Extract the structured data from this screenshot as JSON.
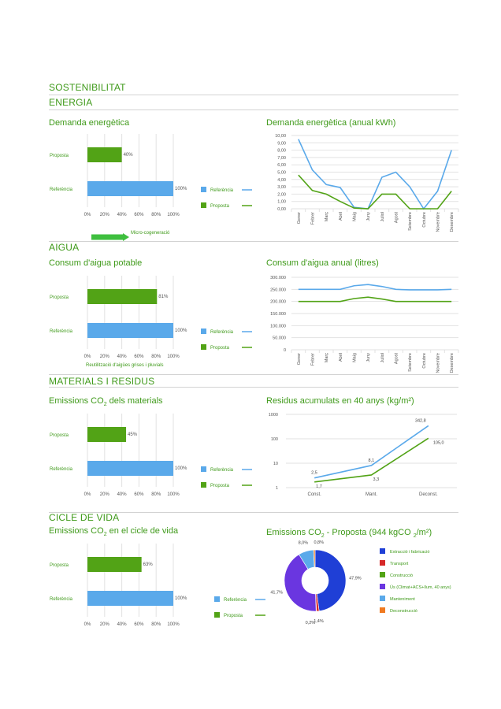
{
  "page": {
    "title": "SOSTENIBILITAT",
    "sections": {
      "energia": "ENERGIA",
      "aigua": "AIGUA",
      "materials": "MATERIALS I RESIDUS",
      "cicle": "CICLE DE VIDA"
    },
    "subtitles": {
      "demanda": "Demanda energètica",
      "demanda_anual": "Demanda energètica (anual kWh)",
      "consum": "Consum d'aigua potable",
      "consum_anual": "Consum d'aigua anual (litres)",
      "emissions_materials_pre": "Emissions CO",
      "emissions_materials_sub": "2",
      "emissions_materials_post": " dels materials",
      "residus": "Residus acumulats en 40 anys (kg/m²)",
      "emissions_cicle_pre": "Emissions CO",
      "emissions_cicle_sub": "2",
      "emissions_cicle_post": " en el cicle de vida",
      "proposta_pre": "Emissions CO",
      "proposta_sub": "2",
      "proposta_mid": " - Proposta (944 kgCO ",
      "proposta_sub2": "2",
      "proposta_post": "/m²)"
    },
    "notes": {
      "micro": "Micro-cogeneració",
      "reutilitzacio": "Reutilització d'aigües grises i pluvials"
    }
  },
  "colors": {
    "referencia": "#5aa9ea",
    "proposta": "#52a316",
    "text_green": "#3f9a1a",
    "grid": "#e2e2e2"
  },
  "chart_data": [
    {
      "id": "demanda-energetica",
      "type": "bar",
      "orientation": "horizontal",
      "categories": [
        "Proposta",
        "Referència"
      ],
      "values": [
        40,
        100
      ],
      "value_labels": [
        "40%",
        "100%"
      ],
      "xlim": [
        0,
        100
      ],
      "xticks": [
        "0%",
        "20%",
        "40%",
        "60%",
        "80%",
        "100%"
      ],
      "legend": [
        "Referència",
        "Proposta"
      ],
      "legend_position": "right"
    },
    {
      "id": "demanda-energetica-anual",
      "type": "line",
      "x": [
        "Gener",
        "Febrer",
        "Març",
        "Abril",
        "Maig",
        "Juny",
        "Juliol",
        "Agost",
        "Setembre",
        "Octubre",
        "Novembre",
        "Desembre"
      ],
      "series": [
        {
          "name": "Referència",
          "values": [
            9.5,
            5.3,
            3.3,
            2.9,
            0.2,
            0.0,
            4.3,
            5.0,
            3.0,
            0.0,
            2.4,
            8.0
          ]
        },
        {
          "name": "Proposta",
          "values": [
            4.6,
            2.5,
            2.0,
            1.0,
            0.1,
            0.0,
            2.0,
            2.0,
            0.0,
            0.0,
            0.0,
            2.4
          ]
        }
      ],
      "ylim": [
        0,
        10
      ],
      "yticks": [
        "0,00",
        "1,00",
        "2,00",
        "3,00",
        "4,00",
        "5,00",
        "6,00",
        "7,00",
        "8,00",
        "9,00",
        "10,00"
      ]
    },
    {
      "id": "consum-aigua",
      "type": "bar",
      "orientation": "horizontal",
      "categories": [
        "Proposta",
        "Referència"
      ],
      "values": [
        81,
        100
      ],
      "value_labels": [
        "81%",
        "100%"
      ],
      "xlim": [
        0,
        100
      ],
      "xticks": [
        "0%",
        "20%",
        "40%",
        "60%",
        "80%",
        "100%"
      ],
      "legend": [
        "Referència",
        "Proposta"
      ],
      "legend_position": "right"
    },
    {
      "id": "consum-aigua-anual",
      "type": "line",
      "x": [
        "Gener",
        "Febrer",
        "Març",
        "Abril",
        "Maig",
        "Juny",
        "Juliol",
        "Agost",
        "Setembre",
        "Octubre",
        "Novembre",
        "Desembre"
      ],
      "series": [
        {
          "name": "Referència",
          "values": [
            250000,
            250000,
            250000,
            250000,
            265000,
            270000,
            262000,
            250000,
            248000,
            248000,
            248000,
            250000
          ]
        },
        {
          "name": "Proposta",
          "values": [
            200000,
            200000,
            200000,
            200000,
            212000,
            218000,
            210000,
            200000,
            200000,
            200000,
            200000,
            200000
          ]
        }
      ],
      "ylim": [
        0,
        300000
      ],
      "yticks": [
        "0",
        "50.000",
        "100.000",
        "150.000",
        "200.000",
        "250.000",
        "300.000"
      ]
    },
    {
      "id": "emissions-materials",
      "type": "bar",
      "orientation": "horizontal",
      "categories": [
        "Proposta",
        "Referència"
      ],
      "values": [
        45,
        100
      ],
      "value_labels": [
        "45%",
        "100%"
      ],
      "xlim": [
        0,
        100
      ],
      "xticks": [
        "0%",
        "20%",
        "40%",
        "60%",
        "80%",
        "100%"
      ],
      "legend": [
        "Referència",
        "Proposta"
      ],
      "legend_position": "right"
    },
    {
      "id": "residus-acumulats",
      "type": "line",
      "yscale": "log",
      "x": [
        "Const.",
        "Mant.",
        "Deconst."
      ],
      "series": [
        {
          "name": "Referència",
          "values": [
            2.5,
            8.1,
            342.8
          ],
          "labels": [
            "2,5",
            "8,1",
            "342,8"
          ]
        },
        {
          "name": "Proposta",
          "values": [
            1.7,
            3.3,
            105.0
          ],
          "labels": [
            "1,7",
            "3,3",
            "105,0"
          ]
        }
      ],
      "ylim": [
        1,
        1000
      ],
      "yticks": [
        "1",
        "10",
        "100",
        "1000"
      ]
    },
    {
      "id": "emissions-cicle-vida",
      "type": "bar",
      "orientation": "horizontal",
      "categories": [
        "Proposta",
        "Referència"
      ],
      "values": [
        63,
        100
      ],
      "value_labels": [
        "63%",
        "100%"
      ],
      "xlim": [
        0,
        100
      ],
      "xticks": [
        "0%",
        "20%",
        "40%",
        "60%",
        "80%",
        "100%"
      ],
      "legend": [
        "Referència",
        "Proposta"
      ],
      "legend_position": "right"
    },
    {
      "id": "emissions-proposta",
      "type": "pie",
      "donut": true,
      "slices": [
        {
          "name": "Extracció i fabricació",
          "value": 47.9,
          "label": "47,9%",
          "color": "#1f3fd6"
        },
        {
          "name": "Transport",
          "value": 1.4,
          "label": "1,4%",
          "color": "#d62828"
        },
        {
          "name": "Construcció",
          "value": 0.2,
          "label": "0,2%",
          "color": "#52a316"
        },
        {
          "name": "Ús (Climat+ACS+llum, 40 anys)",
          "value": 41.7,
          "label": "41,7%",
          "color": "#6a36e0"
        },
        {
          "name": "Manteniment",
          "value": 8.0,
          "label": "8,0%",
          "color": "#5aa9ea"
        },
        {
          "name": "Deconstrucció",
          "value": 0.8,
          "label": "0,8%",
          "color": "#f07a21"
        }
      ],
      "legend_position": "right"
    }
  ]
}
